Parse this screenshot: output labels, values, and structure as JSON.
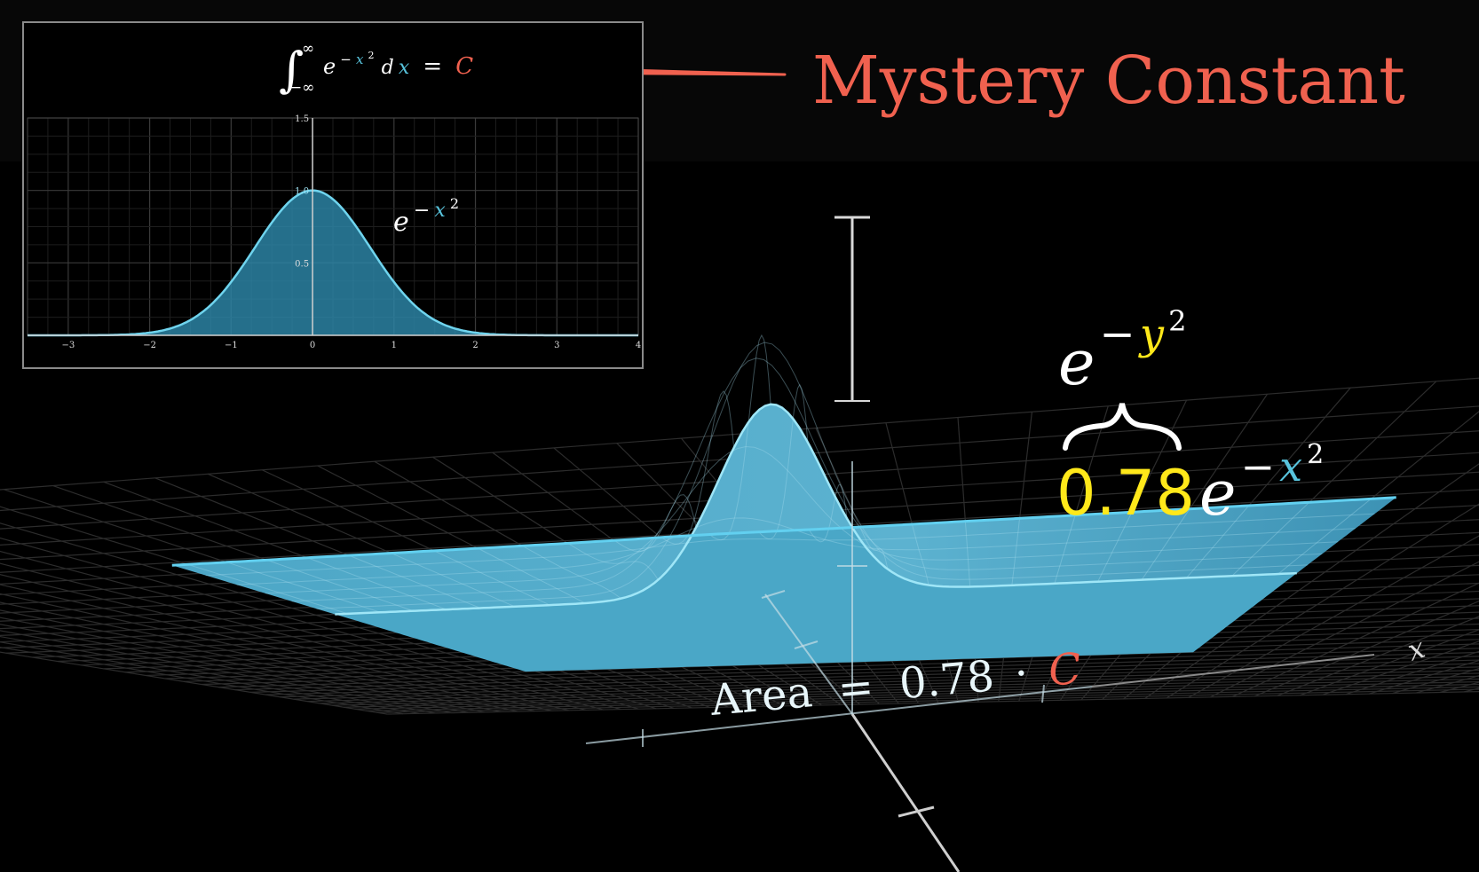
{
  "colors": {
    "background": "#000000",
    "header_band": "#060606",
    "accent_red": "#f0614f",
    "accent_blue": "#58c4dd",
    "accent_yellow": "#ffe81a",
    "surface_fill": "#49aacb",
    "text": "#ffffff"
  },
  "header": {
    "title": "Mystery Constant",
    "arrow_icon": "arrow-left-icon"
  },
  "inset": {
    "integral_lower": "−∞",
    "integral_upper": "∞",
    "integrand_base": "e",
    "integrand_exp_sign": "−",
    "integrand_exp_var": "x",
    "integrand_exp_pow": "2",
    "differential_d": "d",
    "differential_var": "x",
    "equals": "=",
    "constant": "C",
    "curve_label_base": "e",
    "curve_label_sign": "−",
    "curve_label_var": "x",
    "curve_label_pow": "2"
  },
  "chart_data": {
    "type": "area",
    "series": [
      {
        "function": "exp(-x^2)"
      }
    ],
    "xlim": [
      -3.5,
      4.0
    ],
    "ylim": [
      0,
      1.5
    ],
    "x_ticks": [
      "−3",
      "−2",
      "−1",
      "0",
      "1",
      "2",
      "3",
      "4"
    ],
    "y_ticks": [
      "0.5",
      "1.0",
      "1.5"
    ],
    "grid": true
  },
  "surface": {
    "peak_value": 1.0,
    "slice_y": 0.5,
    "slice_scale": 0.78
  },
  "labels": {
    "y_factor_base": "e",
    "y_factor_sign": "−",
    "y_factor_var": "y",
    "y_factor_pow": "2",
    "coefficient": "0.78",
    "x_factor_base": "e",
    "x_factor_sign": "−",
    "x_factor_var": "x",
    "x_factor_pow": "2",
    "area_word": "Area",
    "area_equals": "=",
    "area_value": "0.78",
    "area_dot": "·",
    "area_constant": "C",
    "x_axis_label": "x"
  }
}
